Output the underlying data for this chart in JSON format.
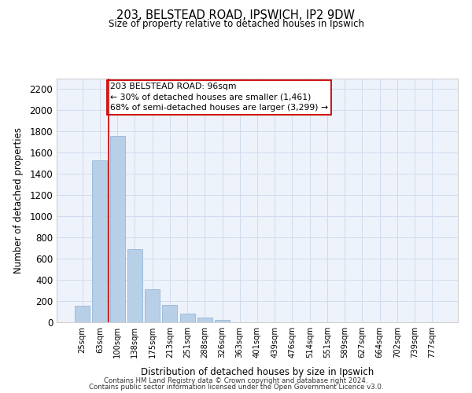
{
  "title1": "203, BELSTEAD ROAD, IPSWICH, IP2 9DW",
  "title2": "Size of property relative to detached houses in Ipswich",
  "xlabel": "Distribution of detached houses by size in Ipswich",
  "ylabel": "Number of detached properties",
  "categories": [
    "25sqm",
    "63sqm",
    "100sqm",
    "138sqm",
    "175sqm",
    "213sqm",
    "251sqm",
    "288sqm",
    "326sqm",
    "363sqm",
    "401sqm",
    "439sqm",
    "476sqm",
    "514sqm",
    "551sqm",
    "589sqm",
    "627sqm",
    "664sqm",
    "702sqm",
    "739sqm",
    "777sqm"
  ],
  "values": [
    155,
    1530,
    1760,
    690,
    315,
    160,
    80,
    43,
    25,
    0,
    0,
    0,
    0,
    0,
    0,
    0,
    0,
    0,
    0,
    0,
    0
  ],
  "bar_color": "#b8cfe8",
  "bar_edge_color": "#8aafd4",
  "vline_x_index": 1.5,
  "marker_label_line1": "203 BELSTEAD ROAD: 96sqm",
  "marker_label_line2": "← 30% of detached houses are smaller (1,461)",
  "marker_label_line3": "68% of semi-detached houses are larger (3,299) →",
  "vline_color": "#cc0000",
  "annotation_box_edge": "#cc0000",
  "grid_color": "#d0dcee",
  "background_color": "#eef2fa",
  "ylim": [
    0,
    2300
  ],
  "yticks": [
    0,
    200,
    400,
    600,
    800,
    1000,
    1200,
    1400,
    1600,
    1800,
    2000,
    2200
  ],
  "footer1": "Contains HM Land Registry data © Crown copyright and database right 2024.",
  "footer2": "Contains public sector information licensed under the Open Government Licence v3.0."
}
